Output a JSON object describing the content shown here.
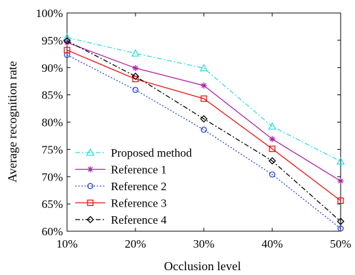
{
  "chart_data": {
    "type": "line",
    "title": "",
    "xlabel": "Occlusion level",
    "ylabel": "Average recognition rate",
    "x": [
      "10%",
      "20%",
      "30%",
      "40%",
      "50%"
    ],
    "x_values": [
      10,
      20,
      30,
      40,
      50
    ],
    "ylim": [
      60,
      100
    ],
    "y_ticks": [
      60,
      65,
      70,
      75,
      80,
      85,
      90,
      95,
      100
    ],
    "y_tick_labels": [
      "60%",
      "65%",
      "70%",
      "75%",
      "80%",
      "85%",
      "90%",
      "95%",
      "100%"
    ],
    "grid": false,
    "legend_position": "bottom-left",
    "series": [
      {
        "name": "Proposed method",
        "values": [
          95.5,
          92.6,
          89.9,
          79.2,
          72.8
        ],
        "color": "#33dddd",
        "dash": "dashdot",
        "marker": "triangle"
      },
      {
        "name": "Reference 1",
        "values": [
          94.6,
          89.9,
          86.7,
          76.9,
          69.2
        ],
        "color": "#aa22aa",
        "dash": "solid",
        "marker": "star"
      },
      {
        "name": "Reference 2",
        "values": [
          92.3,
          85.9,
          78.6,
          70.4,
          60.5
        ],
        "color": "#2244dd",
        "dash": "dotted",
        "marker": "circle"
      },
      {
        "name": "Reference 3",
        "values": [
          93.2,
          87.9,
          84.3,
          75.1,
          65.6
        ],
        "color": "#ee1111",
        "dash": "solid",
        "marker": "square"
      },
      {
        "name": "Reference 4",
        "values": [
          94.9,
          88.4,
          80.6,
          72.9,
          61.8
        ],
        "color": "#000000",
        "dash": "dashdot",
        "marker": "diamond"
      }
    ]
  }
}
